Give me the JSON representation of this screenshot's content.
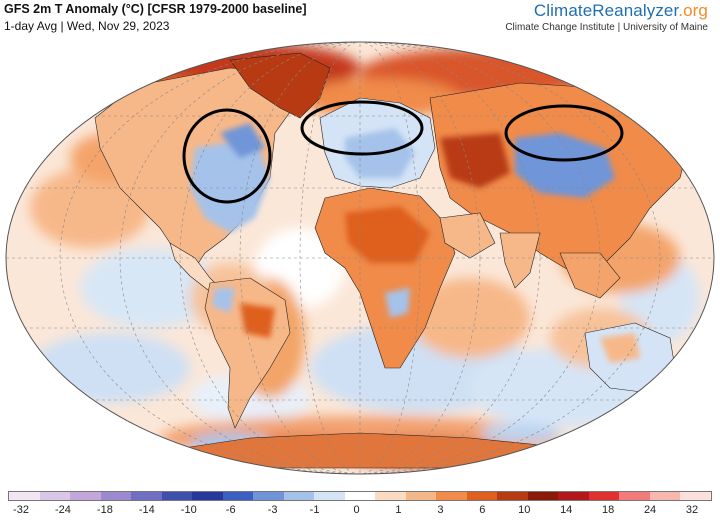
{
  "header": {
    "title": "GFS 2m T Anomaly (°C) [CFSR 1979-2000 baseline]",
    "subtitle": "1-day Avg | Wed, Nov 29, 2023"
  },
  "brand": {
    "name_main": "ClimateReanalyzer",
    "name_tld": ".org",
    "affiliation": "Climate Change Institute | University of Maine",
    "main_color": "#1f6fb4",
    "tld_color": "#f28c28"
  },
  "legend": {
    "ticks": [
      "-32",
      "-24",
      "-18",
      "-14",
      "-10",
      "-6",
      "-3",
      "-1",
      "0",
      "1",
      "3",
      "6",
      "10",
      "14",
      "18",
      "24",
      "32"
    ],
    "colors": [
      "#f2e6f2",
      "#dcc6e8",
      "#c2a6dc",
      "#9c8ad0",
      "#6f6ec2",
      "#3f4fae",
      "#27379a",
      "#3a5fc0",
      "#6f95d8",
      "#a5c2ea",
      "#d4e4f6",
      "#ffffff",
      "#fbdcc2",
      "#f7b889",
      "#f08b4a",
      "#df5f1f",
      "#b83a12",
      "#8a1a0a",
      "#b2181b",
      "#e03030",
      "#f17a7a",
      "#f8b8b0",
      "#fbe0dc"
    ]
  },
  "annotations": [
    {
      "name": "north-america-circle",
      "label": ""
    },
    {
      "name": "europe-circle",
      "label": ""
    },
    {
      "name": "siberia-circle",
      "label": ""
    }
  ]
}
